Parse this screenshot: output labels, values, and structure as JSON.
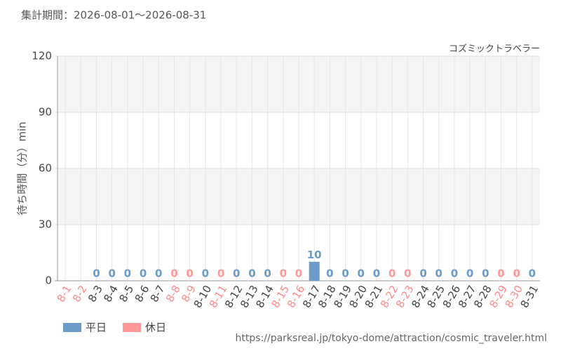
{
  "chart_data": {
    "type": "bar",
    "title": "集計期間：2026-08-01～2026-08-31",
    "subtitle": "コズミックトラベラー",
    "y_label": "待ち時間（分）min",
    "source": "https://parksreal.jp/tokyo-dome/attraction/cosmic_traveler.html",
    "categories": [
      "8-1",
      "8-2",
      "8-3",
      "8-4",
      "8-5",
      "8-6",
      "8-7",
      "8-8",
      "8-9",
      "8-10",
      "8-11",
      "8-12",
      "8-13",
      "8-14",
      "8-15",
      "8-16",
      "8-17",
      "8-18",
      "8-19",
      "8-20",
      "8-21",
      "8-22",
      "8-23",
      "8-24",
      "8-25",
      "8-26",
      "8-27",
      "8-28",
      "8-29",
      "8-30",
      "8-31"
    ],
    "category_colors": [
      "#f88",
      "#f88",
      "#444",
      "#444",
      "#444",
      "#444",
      "#444",
      "#f88",
      "#f88",
      "#444",
      "#f88",
      "#444",
      "#444",
      "#444",
      "#f88",
      "#f88",
      "#444",
      "#444",
      "#444",
      "#444",
      "#444",
      "#f88",
      "#f88",
      "#444",
      "#444",
      "#444",
      "#444",
      "#444",
      "#f88",
      "#f88",
      "#444"
    ],
    "series": [
      {
        "name": "平日",
        "color": "#6b9bc6",
        "values": [
          null,
          null,
          0,
          0,
          0,
          0,
          0,
          null,
          null,
          0,
          null,
          0,
          0,
          0,
          null,
          null,
          10,
          0,
          0,
          0,
          0,
          null,
          null,
          0,
          0,
          0,
          0,
          0,
          null,
          null,
          0
        ]
      },
      {
        "name": "休日",
        "color": "#ff9999",
        "values": [
          null,
          null,
          null,
          null,
          null,
          null,
          null,
          0,
          0,
          null,
          0,
          null,
          null,
          null,
          0,
          0,
          null,
          null,
          null,
          null,
          null,
          0,
          0,
          null,
          null,
          null,
          null,
          null,
          0,
          0,
          null
        ]
      }
    ],
    "ylim": [
      0,
      120
    ],
    "yticks": [
      0,
      30,
      60,
      90,
      120
    ],
    "grid": true
  }
}
